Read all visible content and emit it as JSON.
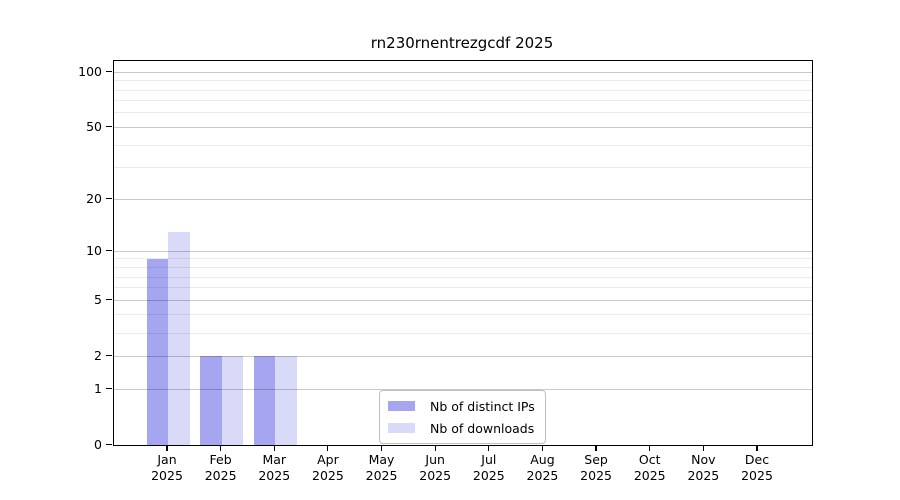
{
  "title": "rn230rnentrezgcdf 2025",
  "chart_data": {
    "type": "bar",
    "title": "rn230rnentrezgcdf 2025",
    "categories": [
      "Jan",
      "Feb",
      "Mar",
      "Apr",
      "May",
      "Jun",
      "Jul",
      "Aug",
      "Sep",
      "Oct",
      "Nov",
      "Dec"
    ],
    "x_sub_label": "2025",
    "series": [
      {
        "name": "Nb of distinct IPs",
        "color": "#a5a5f0",
        "values": [
          9,
          2,
          2,
          0,
          0,
          0,
          0,
          0,
          0,
          0,
          0,
          0
        ]
      },
      {
        "name": "Nb of downloads",
        "color": "#d9d9f8",
        "values": [
          13,
          2,
          2,
          0,
          0,
          0,
          0,
          0,
          0,
          0,
          0,
          0
        ]
      }
    ],
    "yscale": "log1p",
    "ylim": [
      0,
      115
    ],
    "y_major_ticks": [
      0,
      1,
      2,
      5,
      10,
      20,
      50,
      100
    ],
    "y_minor_gridlines": [
      3,
      4,
      6,
      7,
      8,
      9,
      30,
      40,
      60,
      70,
      80,
      90
    ],
    "grid": "horizontal",
    "legend_position": "lower center inside",
    "colors": {
      "bar_distinct_ips": "#a5a5f0",
      "bar_downloads": "#d9d9f8",
      "axis": "#000000",
      "background": "#ffffff",
      "major_grid": "#c9c9c9",
      "minor_grid": "#ebebeb"
    }
  }
}
